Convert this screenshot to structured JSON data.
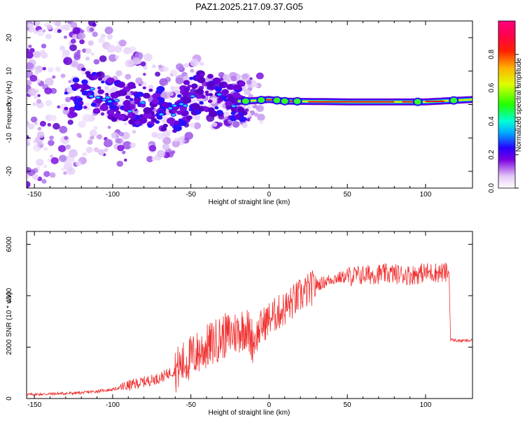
{
  "title": "PAZ1.2025.217.09.37.G05",
  "chart_data": [
    {
      "type": "heatmap",
      "xlabel": "Height of straight line (km)",
      "ylabel": "Frequency (Hz)",
      "xlim": [
        -155,
        130
      ],
      "ylim": [
        -25,
        25
      ],
      "xticks": [
        -150,
        -100,
        -50,
        0,
        50,
        100
      ],
      "yticks": [
        -20,
        -10,
        0,
        10,
        20
      ],
      "colorbar": {
        "label": "Normalized spectral amplitude",
        "range": [
          0,
          1
        ],
        "ticks": [
          0.0,
          0.2,
          0.4,
          0.6,
          0.8
        ]
      },
      "ridge": [
        {
          "x": -120,
          "y": 5
        },
        {
          "x": -90,
          "y": 0
        },
        {
          "x": -60,
          "y": -2
        },
        {
          "x": -45,
          "y": 4
        },
        {
          "x": -30,
          "y": 1
        },
        {
          "x": -15,
          "y": 1
        },
        {
          "x": 0,
          "y": 1.5
        },
        {
          "x": 10,
          "y": 1
        },
        {
          "x": 50,
          "y": 0.8
        },
        {
          "x": 90,
          "y": 0.8
        },
        {
          "x": 100,
          "y": 0.8
        },
        {
          "x": 130,
          "y": 1.5
        }
      ]
    },
    {
      "type": "line",
      "xlabel": "Height of straight line (km)",
      "ylabel": "SNR (10 * v/v)",
      "xlim": [
        -155,
        130
      ],
      "ylim": [
        0,
        6500
      ],
      "xticks": [
        -150,
        -100,
        -50,
        0,
        50,
        100
      ],
      "yticks": [
        0,
        2000,
        4000,
        6000
      ],
      "color": "#f03030",
      "x": [
        -155,
        -140,
        -120,
        -100,
        -90,
        -80,
        -70,
        -60,
        -50,
        -40,
        -30,
        -20,
        -15,
        -10,
        -5,
        0,
        10,
        20,
        30,
        40,
        50,
        60,
        70,
        80,
        90,
        100,
        110,
        115,
        116,
        120,
        130
      ],
      "y": [
        150,
        180,
        220,
        350,
        500,
        650,
        800,
        1100,
        1600,
        2000,
        2400,
        2600,
        2800,
        2200,
        2800,
        3100,
        3500,
        4000,
        4400,
        4650,
        4750,
        4800,
        4850,
        4850,
        4800,
        4900,
        4900,
        4900,
        2300,
        2250,
        2250
      ]
    }
  ]
}
